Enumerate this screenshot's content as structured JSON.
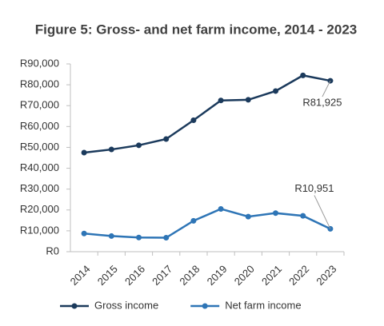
{
  "chart_data": {
    "type": "line",
    "title": "Figure 5: Gross- and net farm income, 2014 - 2023",
    "categories": [
      "2014",
      "2015",
      "2016",
      "2017",
      "2018",
      "2019",
      "2020",
      "2021",
      "2022",
      "2023"
    ],
    "series": [
      {
        "name": "Gross income",
        "color": "#1b3a5c",
        "values": [
          47500,
          49000,
          51000,
          54000,
          63000,
          72500,
          72800,
          77000,
          84500,
          81925
        ],
        "value_labels": [
          null,
          null,
          null,
          null,
          null,
          null,
          null,
          null,
          null,
          "R81,925"
        ]
      },
      {
        "name": "Net farm income",
        "color": "#2e75b6",
        "values": [
          8700,
          7500,
          6800,
          6700,
          14800,
          20500,
          16800,
          18500,
          17200,
          10951
        ],
        "value_labels": [
          null,
          null,
          null,
          null,
          null,
          null,
          null,
          null,
          null,
          "R10,951"
        ]
      }
    ],
    "ylim": [
      0,
      90000
    ],
    "yticks": [
      {
        "value": 0,
        "label": "R0"
      },
      {
        "value": 10000,
        "label": "R10,000"
      },
      {
        "value": 20000,
        "label": "R20,000"
      },
      {
        "value": 30000,
        "label": "R30,000"
      },
      {
        "value": 40000,
        "label": "R40,000"
      },
      {
        "value": 50000,
        "label": "R50,000"
      },
      {
        "value": 60000,
        "label": "R60,000"
      },
      {
        "value": 70000,
        "label": "R70,000"
      },
      {
        "value": 80000,
        "label": "R80,000"
      },
      {
        "value": 90000,
        "label": "R90,000"
      }
    ],
    "grid": false,
    "legend": "bottom"
  }
}
